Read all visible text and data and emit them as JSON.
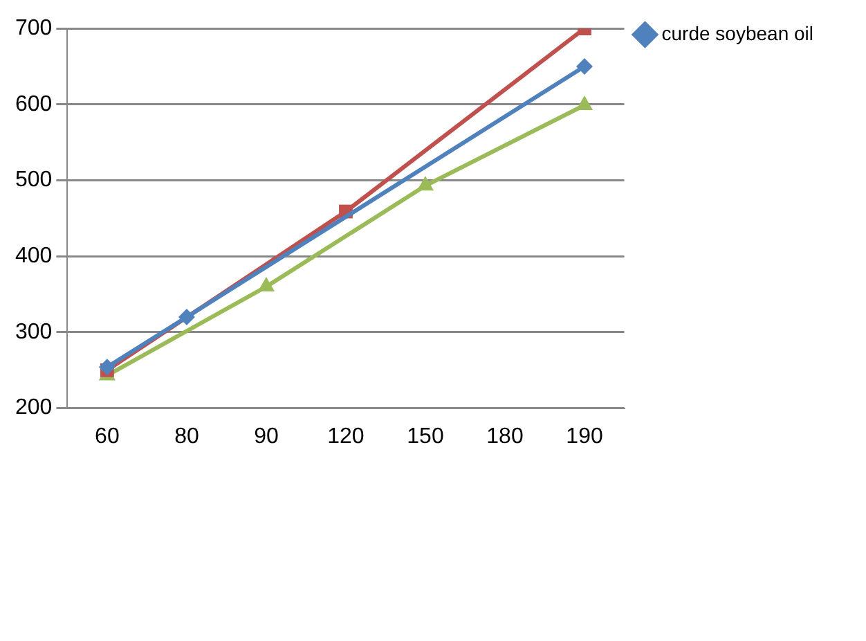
{
  "chart_data": {
    "type": "line",
    "categories": [
      "60",
      "80",
      "90",
      "120",
      "150",
      "180",
      "190"
    ],
    "series": [
      {
        "name": "curde soybean oil",
        "color": "#4f81bd",
        "marker": "diamond",
        "values": [
          254,
          320,
          null,
          null,
          null,
          null,
          650
        ]
      },
      {
        "color": "#c0504d",
        "marker": "square",
        "values": [
          250,
          null,
          null,
          459,
          null,
          null,
          700
        ]
      },
      {
        "color": "#9bbb59",
        "marker": "triangle",
        "values": [
          243,
          null,
          360,
          null,
          493,
          null,
          599
        ]
      }
    ],
    "ylim": [
      200,
      700
    ],
    "yticks": [
      200,
      300,
      400,
      500,
      600,
      700
    ],
    "grid": "y",
    "legend": "top right"
  }
}
